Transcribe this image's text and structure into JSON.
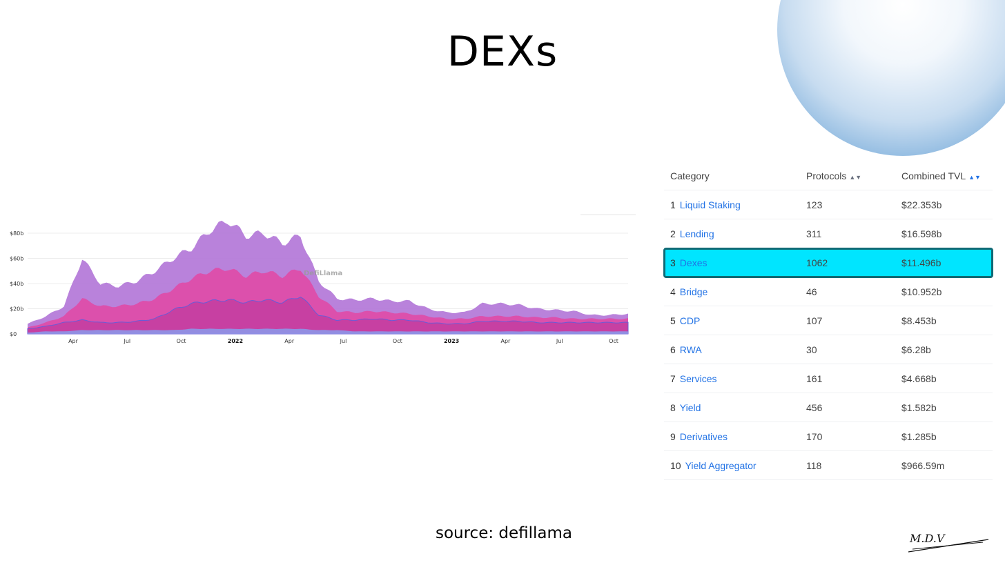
{
  "page": {
    "title": "DEXs",
    "source": "source: defillama",
    "signature": "M.D.V"
  },
  "chart_data": {
    "type": "area",
    "watermark": "DefiLlama",
    "y_ticks": [
      "$0",
      "$20b",
      "$40b",
      "$60b",
      "$80b"
    ],
    "ylim": [
      0,
      80
    ],
    "x_ticks": [
      "Apr",
      "Jul",
      "Oct",
      "2022",
      "Apr",
      "Jul",
      "Oct",
      "2023",
      "Apr",
      "Jul",
      "Oct"
    ],
    "x_tick_bold": [
      false,
      false,
      false,
      true,
      false,
      false,
      false,
      true,
      false,
      false,
      false
    ],
    "x_range": [
      "2021-01",
      "2023-10"
    ],
    "series": [
      {
        "color": "#b57bd9",
        "x": [
          "2021-01",
          "2021-02",
          "2021-03",
          "2021-04",
          "2021-05",
          "2021-06",
          "2021-07",
          "2021-08",
          "2021-09",
          "2021-10",
          "2021-11",
          "2021-12",
          "2022-01",
          "2022-02",
          "2022-03",
          "2022-04",
          "2022-05",
          "2022-06",
          "2022-07",
          "2022-08",
          "2022-09",
          "2022-10",
          "2022-11",
          "2022-12",
          "2023-01",
          "2023-02",
          "2023-03",
          "2023-04",
          "2023-05",
          "2023-06",
          "2023-07",
          "2023-08",
          "2023-09",
          "2023-10"
        ],
        "values": [
          8,
          14,
          22,
          60,
          40,
          38,
          42,
          50,
          60,
          68,
          82,
          90,
          78,
          80,
          72,
          78,
          42,
          28,
          27,
          28,
          26,
          26,
          20,
          17,
          17,
          24,
          24,
          23,
          20,
          19,
          18,
          15,
          15,
          16
        ]
      },
      {
        "color": "#e04aa6",
        "x": [
          "2021-01",
          "2021-02",
          "2021-03",
          "2021-04",
          "2021-05",
          "2021-06",
          "2021-07",
          "2021-08",
          "2021-09",
          "2021-10",
          "2021-11",
          "2021-12",
          "2022-01",
          "2022-02",
          "2022-03",
          "2022-04",
          "2022-05",
          "2022-06",
          "2022-07",
          "2022-08",
          "2022-09",
          "2022-10",
          "2022-11",
          "2022-12",
          "2023-01",
          "2023-02",
          "2023-03",
          "2023-04",
          "2023-05",
          "2023-06",
          "2023-07",
          "2023-08",
          "2023-09",
          "2023-10"
        ],
        "values": [
          5,
          9,
          14,
          28,
          22,
          22,
          24,
          28,
          36,
          44,
          50,
          52,
          46,
          50,
          46,
          52,
          30,
          18,
          17,
          18,
          17,
          16,
          14,
          12,
          12,
          14,
          14,
          14,
          13,
          13,
          12,
          12,
          12,
          12
        ]
      },
      {
        "color": "#c43ea1",
        "x": [
          "2021-01",
          "2021-02",
          "2021-03",
          "2021-04",
          "2021-05",
          "2021-06",
          "2021-07",
          "2021-08",
          "2021-09",
          "2021-10",
          "2021-11",
          "2021-12",
          "2022-01",
          "2022-02",
          "2022-03",
          "2022-04",
          "2022-05",
          "2022-06",
          "2022-07",
          "2022-08",
          "2022-09",
          "2022-10",
          "2022-11",
          "2022-12",
          "2023-01",
          "2023-02",
          "2023-03",
          "2023-04",
          "2023-05",
          "2023-06",
          "2023-07",
          "2023-08",
          "2023-09",
          "2023-10"
        ],
        "values": [
          4,
          6,
          9,
          11,
          9,
          9,
          10,
          12,
          19,
          24,
          26,
          27,
          25,
          27,
          25,
          30,
          15,
          11,
          11,
          12,
          11,
          11,
          9,
          8,
          8,
          10,
          10,
          10,
          9,
          9,
          9,
          9,
          9,
          9
        ]
      },
      {
        "color": "#8d96e8",
        "x": [
          "2021-01",
          "2021-02",
          "2021-03",
          "2021-04",
          "2021-05",
          "2021-06",
          "2021-07",
          "2021-08",
          "2021-09",
          "2021-10",
          "2021-11",
          "2021-12",
          "2022-01",
          "2022-02",
          "2022-03",
          "2022-04",
          "2022-05",
          "2022-06",
          "2022-07",
          "2022-08",
          "2022-09",
          "2022-10",
          "2022-11",
          "2022-12",
          "2023-01",
          "2023-02",
          "2023-03",
          "2023-04",
          "2023-05",
          "2023-06",
          "2023-07",
          "2023-08",
          "2023-09",
          "2023-10"
        ],
        "values": [
          1,
          2,
          2,
          3,
          3,
          3,
          3,
          3,
          3,
          4,
          4,
          4,
          4,
          4,
          4,
          4,
          3,
          3,
          2,
          2,
          2,
          2,
          2,
          2,
          2,
          2,
          2,
          2,
          2,
          2,
          2,
          2,
          2,
          2
        ]
      }
    ]
  },
  "table": {
    "headers": {
      "category": "Category",
      "protocols": "Protocols",
      "tvl": "Combined TVL"
    },
    "rows": [
      {
        "rank": "1",
        "name": "Liquid Staking",
        "protocols": "123",
        "tvl": "$22.353b"
      },
      {
        "rank": "2",
        "name": "Lending",
        "protocols": "311",
        "tvl": "$16.598b"
      },
      {
        "rank": "3",
        "name": "Dexes",
        "protocols": "1062",
        "tvl": "$11.496b",
        "highlighted": true
      },
      {
        "rank": "4",
        "name": "Bridge",
        "protocols": "46",
        "tvl": "$10.952b"
      },
      {
        "rank": "5",
        "name": "CDP",
        "protocols": "107",
        "tvl": "$8.453b"
      },
      {
        "rank": "6",
        "name": "RWA",
        "protocols": "30",
        "tvl": "$6.28b"
      },
      {
        "rank": "7",
        "name": "Services",
        "protocols": "161",
        "tvl": "$4.668b"
      },
      {
        "rank": "8",
        "name": "Yield",
        "protocols": "456",
        "tvl": "$1.582b"
      },
      {
        "rank": "9",
        "name": "Derivatives",
        "protocols": "170",
        "tvl": "$1.285b"
      },
      {
        "rank": "10",
        "name": "Yield Aggregator",
        "protocols": "118",
        "tvl": "$966.59m"
      }
    ]
  },
  "colors": {
    "highlight": "#00e5ff",
    "highlight_border": "#106a75",
    "link": "#2172e5"
  }
}
